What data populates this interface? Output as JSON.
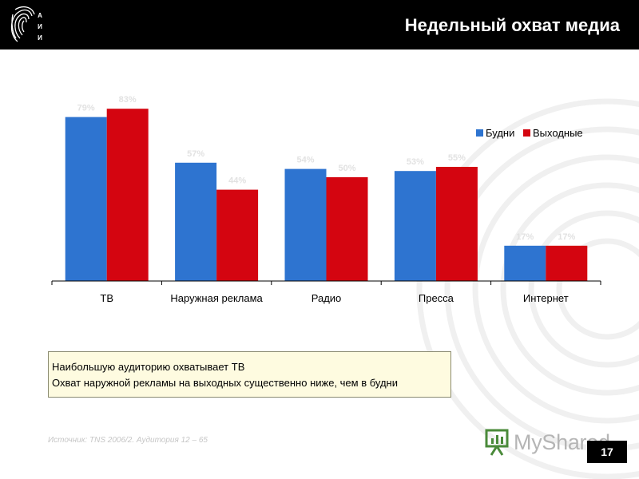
{
  "header": {
    "title": "Недельный охват медиа",
    "logo_text": "АИИ"
  },
  "colors": {
    "weekday": "#2e74d0",
    "weekend": "#d40510",
    "header_bg": "#000000",
    "note_bg": "#fefbe0"
  },
  "chart_data": {
    "type": "bar",
    "categories": [
      "ТВ",
      "Наружная реклама",
      "Радио",
      "Пресса",
      "Интернет"
    ],
    "series": [
      {
        "name": "Будни",
        "color": "#2e74d0",
        "values": [
          79,
          57,
          54,
          53,
          17
        ]
      },
      {
        "name": "Выходные",
        "color": "#d40510",
        "values": [
          83,
          44,
          50,
          55,
          17
        ]
      }
    ],
    "data_labels": [
      [
        "79%",
        "57%",
        "54%",
        "53%",
        "17%"
      ],
      [
        "83%",
        "44%",
        "50%",
        "55%",
        "17%"
      ]
    ],
    "ylim": [
      0,
      100
    ],
    "legend_position": "top-right",
    "grid": false
  },
  "notes": {
    "line1": "Наибольшую аудиторию охватывает ТВ",
    "line2": "Охват наружной рекламы на выходных существенно ниже, чем в будни"
  },
  "source": "Источник: TNS 2006/2. Аудитория 12 – 65",
  "watermark": "MyShared",
  "page_number": "17"
}
